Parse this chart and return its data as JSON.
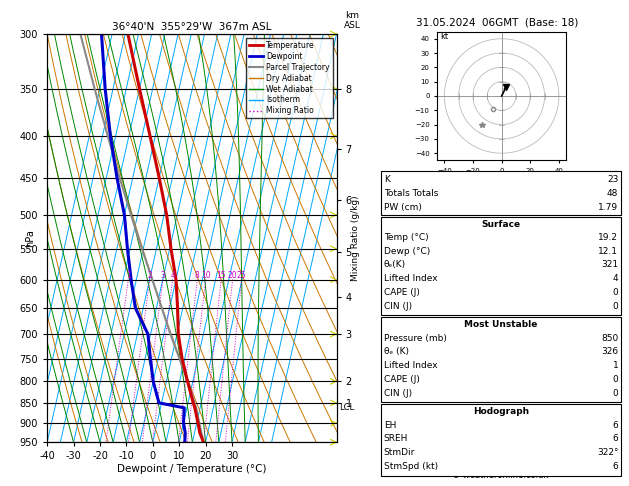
{
  "title_left": "36°40'N  355°29'W  367m ASL",
  "title_right": "31.05.2024  06GMT  (Base: 18)",
  "xlabel": "Dewpoint / Temperature (°C)",
  "pressure_levels": [
    300,
    350,
    400,
    450,
    500,
    550,
    600,
    650,
    700,
    750,
    800,
    850,
    900,
    950
  ],
  "km_ticks": {
    "1": 850,
    "2": 800,
    "3": 700,
    "4": 630,
    "5": 555,
    "6": 480,
    "7": 415,
    "8": 350
  },
  "lcl_pressure": 862,
  "mixing_ratio_labels": [
    1,
    2,
    3,
    4,
    8,
    10,
    15,
    20,
    25
  ],
  "sounding_color_temp": "#cc0000",
  "sounding_color_dewp": "#0000cc",
  "parcel_color": "#888888",
  "dry_adiabat_color": "#cc7700",
  "wet_adiabat_color": "#008800",
  "isotherm_color": "#00aaff",
  "mixing_ratio_color": "#cc00cc",
  "legend_items": [
    {
      "label": "Temperature",
      "color": "#cc0000",
      "lw": 2,
      "ls": "-"
    },
    {
      "label": "Dewpoint",
      "color": "#0000cc",
      "lw": 2,
      "ls": "-"
    },
    {
      "label": "Parcel Trajectory",
      "color": "#888888",
      "lw": 1.5,
      "ls": "-"
    },
    {
      "label": "Dry Adiabat",
      "color": "#cc7700",
      "lw": 1,
      "ls": "-"
    },
    {
      "label": "Wet Adiabat",
      "color": "#008800",
      "lw": 1,
      "ls": "-"
    },
    {
      "label": "Isotherm",
      "color": "#00aaff",
      "lw": 1,
      "ls": "-"
    },
    {
      "label": "Mixing Ratio",
      "color": "#cc00cc",
      "lw": 1,
      "ls": ":"
    }
  ],
  "info_box": {
    "K": "23",
    "Totals Totals": "48",
    "PW (cm)": "1.79",
    "surface": {
      "Temp": "19.2",
      "Dewp": "12.1",
      "theta_e": "321",
      "Lifted Index": "4",
      "CAPE": "0",
      "CIN": "0"
    },
    "most_unstable": {
      "Pressure": "850",
      "theta_e": "326",
      "Lifted Index": "1",
      "CAPE": "0",
      "CIN": "0"
    },
    "hodograph": {
      "EH": "6",
      "SREH": "6",
      "StmDir": "322°",
      "StmSpd": "6"
    }
  },
  "temp_profile": {
    "pressure": [
      950,
      925,
      900,
      862,
      850,
      800,
      750,
      700,
      650,
      600,
      550,
      500,
      450,
      400,
      350,
      300
    ],
    "temp": [
      19.2,
      17.0,
      15.5,
      13.0,
      12.0,
      8.0,
      4.0,
      0.5,
      -2.0,
      -5.0,
      -9.5,
      -14.0,
      -20.0,
      -27.0,
      -35.0,
      -44.0
    ]
  },
  "dewp_profile": {
    "pressure": [
      950,
      925,
      900,
      862,
      850,
      800,
      750,
      700,
      650,
      600,
      550,
      500,
      450,
      400,
      350,
      300
    ],
    "temp": [
      12.1,
      11.5,
      10.0,
      9.0,
      -1.0,
      -5.0,
      -8.0,
      -11.0,
      -18.0,
      -22.0,
      -26.0,
      -30.0,
      -36.0,
      -42.0,
      -48.0,
      -54.0
    ]
  },
  "parcel_profile": {
    "pressure": [
      950,
      900,
      862,
      850,
      800,
      750,
      700,
      650,
      600,
      550,
      500,
      450,
      400,
      350,
      300
    ],
    "temp": [
      19.2,
      16.0,
      13.5,
      12.5,
      8.0,
      3.0,
      -2.5,
      -8.0,
      -14.0,
      -20.5,
      -27.5,
      -35.0,
      -43.0,
      -52.0,
      -62.0
    ]
  },
  "copyright": "© weatheronline.co.uk"
}
